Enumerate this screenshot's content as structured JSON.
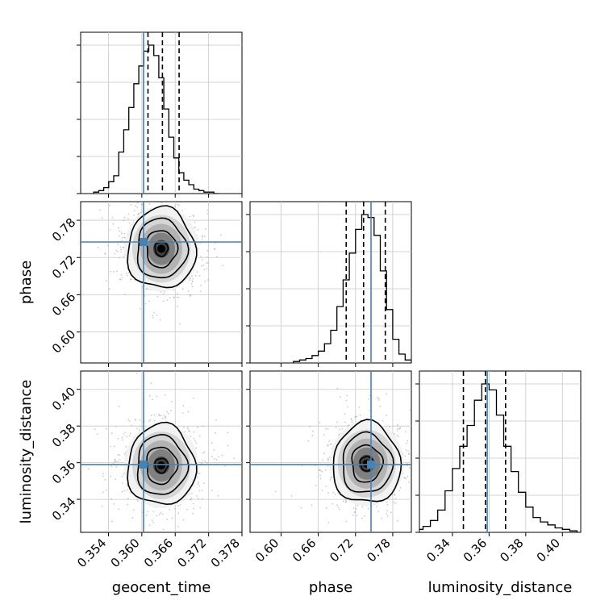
{
  "chart_data": {
    "type": "corner",
    "parameters": [
      "geocent_time",
      "phase",
      "luminosity_distance"
    ],
    "axis_labels": {
      "geocent_time": "geocent_time",
      "phase": "phase",
      "luminosity_distance": "luminosity_distance"
    },
    "ranges": {
      "geocent_time": [
        0.349,
        0.378
      ],
      "phase": [
        0.55,
        0.81
      ],
      "luminosity_distance": [
        0.322,
        0.41
      ]
    },
    "ticks": {
      "geocent_time": [
        "0.354",
        "0.360",
        "0.366",
        "0.372",
        "0.378"
      ],
      "phase": [
        "0.60",
        "0.66",
        "0.72",
        "0.78"
      ],
      "luminosity_distance": [
        "0.34",
        "0.36",
        "0.38",
        "0.40"
      ]
    },
    "truths": {
      "geocent_time": 0.3603,
      "phase": 0.745,
      "luminosity_distance": 0.359
    },
    "quantiles": {
      "geocent_time": [
        0.3611,
        0.3637,
        0.3667
      ],
      "phase": [
        0.705,
        0.733,
        0.768
      ],
      "luminosity_distance": [
        0.346,
        0.358,
        0.369
      ]
    },
    "histograms": {
      "geocent_time": {
        "bins": [
          0.3518,
          0.3527,
          0.3536,
          0.3545,
          0.3554,
          0.3563,
          0.3572,
          0.3581,
          0.359,
          0.3599,
          0.3608,
          0.3617,
          0.3626,
          0.3635,
          0.3644,
          0.3653,
          0.3662,
          0.3671,
          0.368,
          0.3689,
          0.3698,
          0.3707,
          0.3716,
          0.3725,
          0.3734
        ],
        "counts": [
          0.01,
          0.02,
          0.04,
          0.08,
          0.12,
          0.28,
          0.43,
          0.58,
          0.74,
          0.86,
          0.96,
          1.0,
          0.93,
          0.78,
          0.57,
          0.38,
          0.24,
          0.14,
          0.09,
          0.06,
          0.03,
          0.02,
          0.01,
          0.01,
          0.0
        ]
      },
      "phase": {
        "bins": [
          0.625,
          0.635,
          0.645,
          0.655,
          0.665,
          0.675,
          0.685,
          0.695,
          0.705,
          0.715,
          0.725,
          0.735,
          0.745,
          0.755,
          0.765,
          0.775,
          0.785,
          0.795,
          0.805
        ],
        "counts": [
          0.01,
          0.02,
          0.03,
          0.05,
          0.08,
          0.13,
          0.22,
          0.38,
          0.56,
          0.74,
          0.9,
          1.0,
          0.98,
          0.86,
          0.62,
          0.36,
          0.16,
          0.06,
          0.02
        ]
      },
      "luminosity_distance": {
        "bins": [
          0.322,
          0.326,
          0.33,
          0.334,
          0.338,
          0.342,
          0.346,
          0.35,
          0.354,
          0.358,
          0.362,
          0.366,
          0.37,
          0.374,
          0.378,
          0.382,
          0.386,
          0.39,
          0.394,
          0.398,
          0.402,
          0.406
        ],
        "counts": [
          0.02,
          0.04,
          0.08,
          0.15,
          0.28,
          0.43,
          0.58,
          0.72,
          0.89,
          1.0,
          0.96,
          0.79,
          0.58,
          0.41,
          0.27,
          0.17,
          0.1,
          0.07,
          0.05,
          0.03,
          0.02,
          0.01
        ]
      }
    },
    "density_centers": {
      "geocent_time_phase": [
        0.3635,
        0.734
      ],
      "geocent_time_luminosity_distance": [
        0.3635,
        0.3585
      ],
      "phase_luminosity_distance": [
        0.738,
        0.3595
      ]
    },
    "grid": true,
    "colors": {
      "hist": "#000000",
      "truth": "#4682b4",
      "scatter": "#a0a0a0",
      "contour": "#000000",
      "grid": "#c8c8c8"
    }
  }
}
